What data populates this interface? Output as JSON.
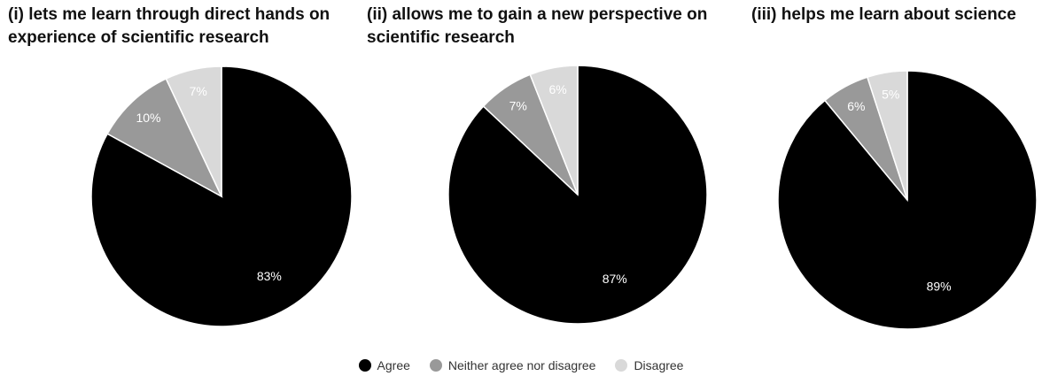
{
  "chart_data": [
    {
      "type": "pie",
      "title_lines": [
        "(i) lets me learn through direct hands on",
        "experience of scientific research"
      ],
      "slices": [
        {
          "label": "Agree",
          "value": 83,
          "text": "83%"
        },
        {
          "label": "Neither agree nor disagree",
          "value": 10,
          "text": "10%"
        },
        {
          "label": "Disagree",
          "value": 7,
          "text": "7%"
        }
      ]
    },
    {
      "type": "pie",
      "title_lines": [
        "(ii) allows me to gain a new perspective on",
        "scientific research"
      ],
      "slices": [
        {
          "label": "Agree",
          "value": 87,
          "text": "87%"
        },
        {
          "label": "Neither agree nor disagree",
          "value": 7,
          "text": "7%"
        },
        {
          "label": "Disagree",
          "value": 6,
          "text": "6%"
        }
      ]
    },
    {
      "type": "pie",
      "title_lines": [
        "(iii) helps me learn about science"
      ],
      "slices": [
        {
          "label": "Agree",
          "value": 89,
          "text": "89%"
        },
        {
          "label": "Neither agree nor disagree",
          "value": 6,
          "text": "6%"
        },
        {
          "label": "Disagree",
          "value": 5,
          "text": "5%"
        }
      ]
    }
  ],
  "legend": {
    "placement": "bottom-center",
    "items": [
      {
        "label": "Agree",
        "color": "#000000"
      },
      {
        "label": "Neither agree nor disagree",
        "color": "#999999"
      },
      {
        "label": "Disagree",
        "color": "#d9d9d9"
      }
    ]
  },
  "colors": {
    "Agree": "#000000",
    "Neither agree nor disagree": "#999999",
    "Disagree": "#d9d9d9"
  }
}
